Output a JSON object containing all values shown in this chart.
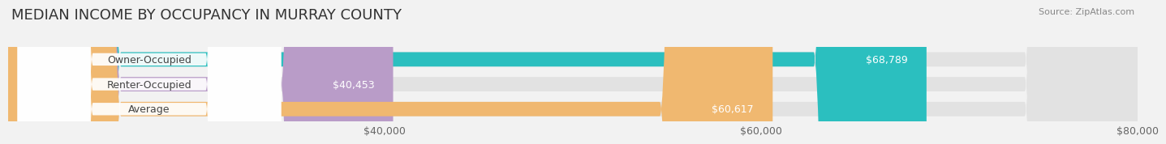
{
  "title": "MEDIAN INCOME BY OCCUPANCY IN MURRAY COUNTY",
  "source": "Source: ZipAtlas.com",
  "categories": [
    "Owner-Occupied",
    "Renter-Occupied",
    "Average"
  ],
  "values": [
    68789,
    40453,
    60617
  ],
  "bar_colors": [
    "#2bbfbf",
    "#b99cc8",
    "#f0b870"
  ],
  "value_labels": [
    "$68,789",
    "$40,453",
    "$60,617"
  ],
  "xmin": 20000,
  "xlim": [
    20000,
    80000
  ],
  "xticks": [
    40000,
    60000,
    80000
  ],
  "xtick_labels": [
    "$40,000",
    "$60,000",
    "$80,000"
  ],
  "bar_height": 0.58,
  "background_color": "#f2f2f2",
  "bar_background_color": "#e2e2e2",
  "label_bg_color": "#ffffff",
  "title_fontsize": 13,
  "label_fontsize": 9,
  "value_fontsize": 9,
  "tick_fontsize": 9
}
